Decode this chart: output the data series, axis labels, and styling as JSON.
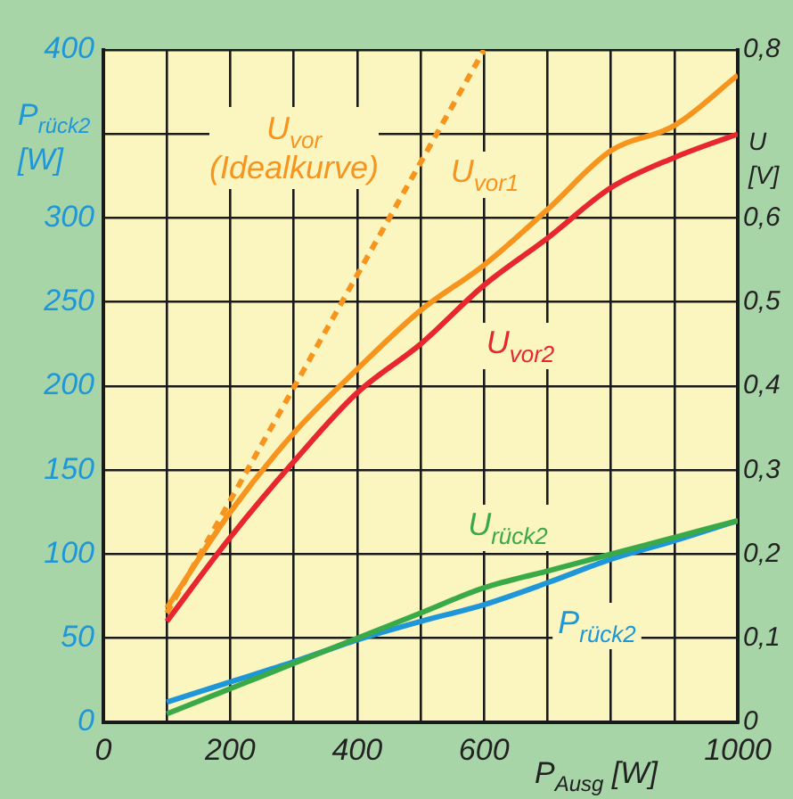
{
  "chart_data": {
    "type": "line",
    "xlabel": "P$_{Ausg}$ [W]",
    "ylabel": "P$_{rück2}$ [W]",
    "y2label": "U [V]",
    "x": [
      100,
      200,
      300,
      400,
      500,
      600,
      700,
      800,
      900,
      1000
    ],
    "xlim": [
      0,
      1000
    ],
    "xticks": [
      0,
      {
        "value": 100,
        "label": null
      },
      200,
      {
        "value": 300,
        "label": null
      },
      400,
      {
        "value": 500,
        "label": null
      },
      600,
      {
        "value": 700,
        "label": null
      },
      {
        "value": 800,
        "label": null
      },
      {
        "value": 900,
        "label": null
      },
      1000
    ],
    "ylim": [
      0,
      400
    ],
    "yticks": [
      0,
      50,
      100,
      150,
      200,
      250,
      300,
      {
        "value": 350,
        "label": null
      },
      400
    ],
    "y2lim": [
      0,
      0.8
    ],
    "y2ticks": [
      0,
      {
        "value": 0.1,
        "label": "0,1"
      },
      {
        "value": 0.2,
        "label": "0,2"
      },
      {
        "value": 0.3,
        "label": "0,3"
      },
      {
        "value": 0.4,
        "label": "0,4"
      },
      {
        "value": 0.5,
        "label": "0,5"
      },
      {
        "value": 0.6,
        "label": "0,6"
      },
      {
        "value": 0.7,
        "label": null
      },
      {
        "value": 0.8,
        "label": "0,8"
      }
    ],
    "grid": true,
    "legend": false,
    "marker": "none",
    "series": [
      {
        "name": "U$_{vor}$ (Idealkurve)",
        "color": "#f7941d",
        "axis": "y2",
        "line_style": "dashed",
        "x": [
          100,
          600
        ],
        "values": [
          0.13,
          0.8
        ]
      },
      {
        "name": "U$_{vor1}$",
        "color": "#f7941d",
        "axis": "y2",
        "values": [
          0.136,
          0.25,
          0.344,
          0.42,
          0.49,
          0.544,
          0.61,
          0.68,
          0.71,
          0.77
        ]
      },
      {
        "name": "U$_{vor2}$",
        "color": "#e8262e",
        "axis": "y2",
        "values": [
          0.12,
          0.22,
          0.31,
          0.392,
          0.45,
          0.52,
          0.576,
          0.636,
          0.672,
          0.7
        ]
      },
      {
        "name": "U$_{rück2}$",
        "color": "#3aaa48",
        "axis": "y2",
        "values": [
          0.01,
          0.04,
          0.07,
          0.1,
          0.13,
          0.16,
          0.18,
          0.2,
          0.22,
          0.24
        ]
      },
      {
        "name": "P$_{rück2}$",
        "color": "#1e96d8",
        "values": [
          12,
          24,
          36,
          49,
          60,
          70,
          83,
          97,
          108,
          120
        ]
      }
    ]
  }
}
